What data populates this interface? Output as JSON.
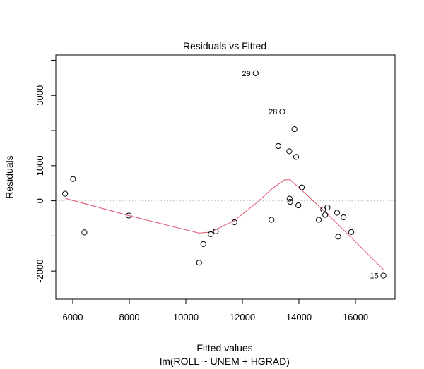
{
  "chart_data": {
    "type": "scatter",
    "title": "Residuals vs Fitted",
    "xlabel": "Fitted values",
    "xlabel_sub": "lm(ROLL ~ UNEM + HGRAD)",
    "ylabel": "Residuals",
    "xlim": [
      5400,
      17400
    ],
    "ylim": [
      -2800,
      4150
    ],
    "x_ticks": [
      6000,
      8000,
      10000,
      12000,
      14000,
      16000
    ],
    "y_ticks": [
      -2000,
      0,
      1000,
      3000
    ],
    "y_minor_ticks": [
      -1000,
      2000,
      4000
    ],
    "zero_line": true,
    "points": [
      {
        "x": 5730,
        "y": 200
      },
      {
        "x": 6010,
        "y": 620
      },
      {
        "x": 6410,
        "y": -900
      },
      {
        "x": 7980,
        "y": -420
      },
      {
        "x": 10470,
        "y": -1760
      },
      {
        "x": 10620,
        "y": -1230
      },
      {
        "x": 10880,
        "y": -950
      },
      {
        "x": 11060,
        "y": -870
      },
      {
        "x": 11720,
        "y": -610
      },
      {
        "x": 12470,
        "y": 3630,
        "label": "29"
      },
      {
        "x": 13030,
        "y": -540
      },
      {
        "x": 13270,
        "y": 1560
      },
      {
        "x": 13410,
        "y": 2540,
        "label": "28"
      },
      {
        "x": 13660,
        "y": 1410
      },
      {
        "x": 13670,
        "y": 60
      },
      {
        "x": 13690,
        "y": -30
      },
      {
        "x": 13840,
        "y": 2040
      },
      {
        "x": 13900,
        "y": 1250
      },
      {
        "x": 13980,
        "y": -130
      },
      {
        "x": 14100,
        "y": 380
      },
      {
        "x": 14700,
        "y": -540
      },
      {
        "x": 14860,
        "y": -250
      },
      {
        "x": 14930,
        "y": -400
      },
      {
        "x": 15010,
        "y": -190
      },
      {
        "x": 15350,
        "y": -340
      },
      {
        "x": 15390,
        "y": -1020
      },
      {
        "x": 15580,
        "y": -470
      },
      {
        "x": 15850,
        "y": -890
      },
      {
        "x": 16990,
        "y": -2130,
        "label": "15"
      }
    ],
    "smooth_line": {
      "color": "#df536b",
      "points": [
        [
          5730,
          70
        ],
        [
          7980,
          -420
        ],
        [
          10470,
          -920
        ],
        [
          10880,
          -890
        ],
        [
          11720,
          -560
        ],
        [
          12500,
          -60
        ],
        [
          13060,
          350
        ],
        [
          13500,
          600
        ],
        [
          13690,
          600
        ],
        [
          14100,
          300
        ],
        [
          14930,
          -320
        ],
        [
          15580,
          -830
        ],
        [
          16990,
          -1960
        ]
      ]
    }
  }
}
